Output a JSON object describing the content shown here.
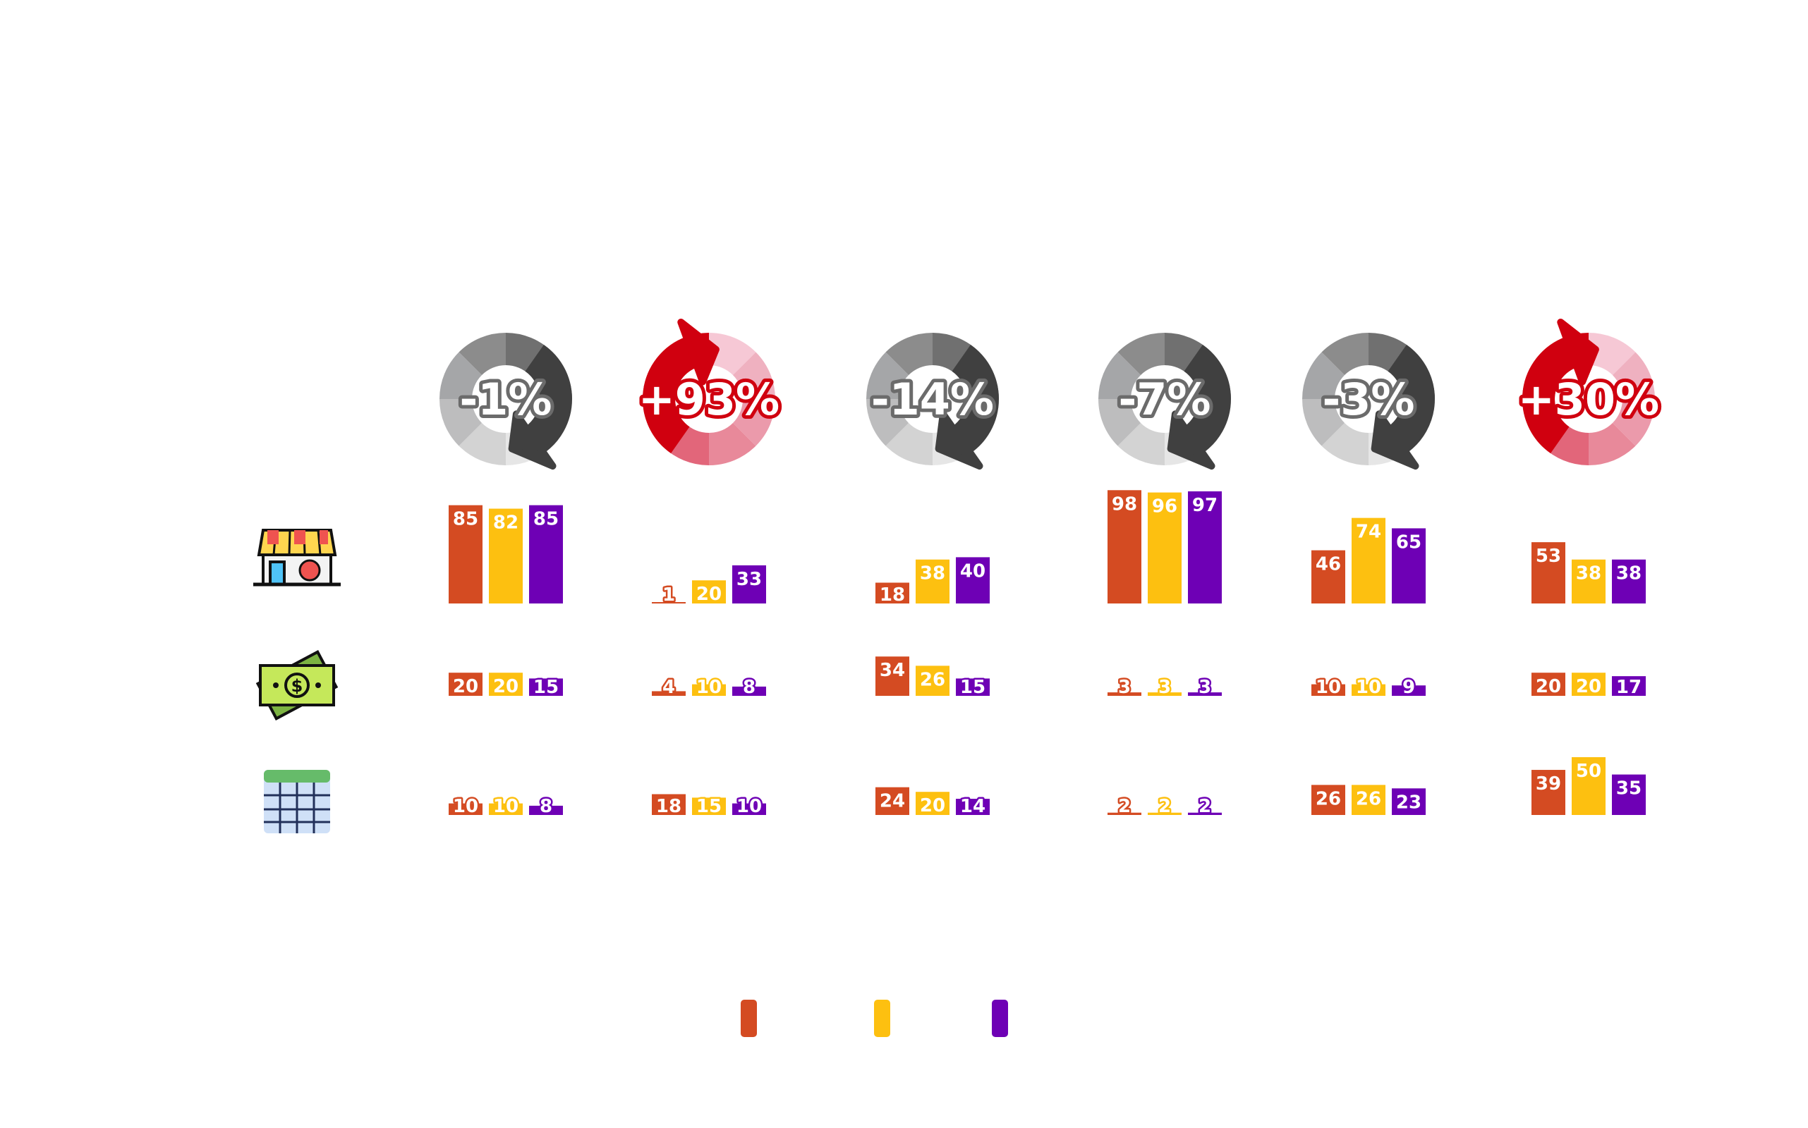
{
  "chart_data": {
    "type": "bar",
    "title": "",
    "series_colors": [
      "#D44B22",
      "#FDC010",
      "#6E00B5"
    ],
    "row_icons": [
      "store-icon",
      "money-icon",
      "spreadsheet-icon"
    ],
    "change_colors": {
      "negative": "#6b6b6b",
      "positive": "#D0000F"
    },
    "groups": [
      {
        "change": "-1%",
        "direction": "down",
        "rows": [
          [
            85,
            82,
            85
          ],
          [
            20,
            20,
            15
          ],
          [
            10,
            10,
            8
          ]
        ]
      },
      {
        "change": "+93%",
        "direction": "up",
        "rows": [
          [
            1,
            20,
            33
          ],
          [
            4,
            10,
            8
          ],
          [
            18,
            15,
            10
          ]
        ]
      },
      {
        "change": "-14%",
        "direction": "down",
        "rows": [
          [
            18,
            38,
            40
          ],
          [
            34,
            26,
            15
          ],
          [
            24,
            20,
            14
          ]
        ]
      },
      {
        "change": "-7%",
        "direction": "down",
        "rows": [
          [
            98,
            96,
            97
          ],
          [
            3,
            3,
            3
          ],
          [
            2,
            2,
            2
          ]
        ]
      },
      {
        "change": "-3%",
        "direction": "down",
        "rows": [
          [
            46,
            74,
            65
          ],
          [
            10,
            10,
            9
          ],
          [
            26,
            26,
            23
          ]
        ]
      },
      {
        "change": "+30%",
        "direction": "up",
        "rows": [
          [
            53,
            38,
            38
          ],
          [
            20,
            20,
            17
          ],
          [
            39,
            50,
            35
          ]
        ]
      }
    ],
    "legend": {
      "placement": "bottom",
      "entries": [
        "",
        "",
        ""
      ]
    }
  }
}
